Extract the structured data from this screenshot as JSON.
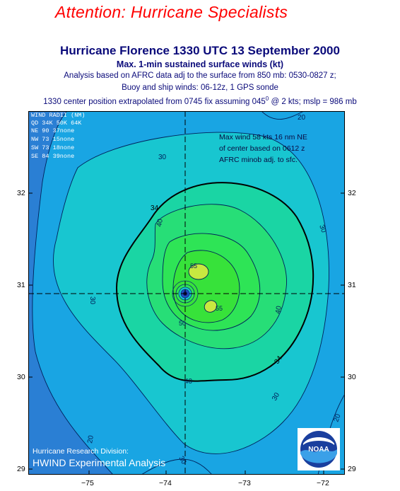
{
  "header": {
    "attention": "Attention:  Hurricane Specialists",
    "title": "Hurricane Florence 1330 UTC 13 September 2000",
    "subtitle": "Max. 1-min sustained surface winds (kt)",
    "info_line1": "Analysis based on AFRC data adj to the surface from 850 mb: 0530-0827 z;",
    "info_line2": "Buoy and ship winds: 06-12z, 1 GPS sonde",
    "info_line3_a": "1330  center position extrapolated from 0745 fix assuming 045",
    "info_line3_sup": "0",
    "info_line3_b": " @ 2 kts; mslp = 986 mb"
  },
  "wind_radii": {
    "title": "WIND RADII (NM)",
    "header": "QD 34K 50K 64K",
    "rows": [
      "NE  90   37none",
      "NW  73   15none",
      "SW  73   18none",
      "SE  84   39none"
    ]
  },
  "note": {
    "line1": "Max wind 58 kts 16 nm NE",
    "line2": "of center based on 0612 z",
    "line3": "AFRC minob adj. to sfc."
  },
  "credits": {
    "line1": "Hurricane Research Division:",
    "line2": "HWIND Experimental Analysis",
    "logo_text": "NOAA"
  },
  "axes": {
    "x_ticks": [
      "−75",
      "−74",
      "−73",
      "−72"
    ],
    "y_ticks": [
      "32",
      "31",
      "30",
      "29"
    ]
  },
  "contour_labels": {
    "c20": "20",
    "c30": "30",
    "c34": "34",
    "c40": "40",
    "c50": "50",
    "c55": "55"
  },
  "colors": {
    "attention": "#ff0000",
    "title": "#0a0a7a",
    "band_outer": "#2a7fd4",
    "band_20": "#19a5e3",
    "band_30": "#18c6d0",
    "band_34": "#1ad5a4",
    "band_40": "#27de77",
    "band_45": "#2ee456",
    "band_50": "#37e23a",
    "band_55": "#c8e840"
  }
}
